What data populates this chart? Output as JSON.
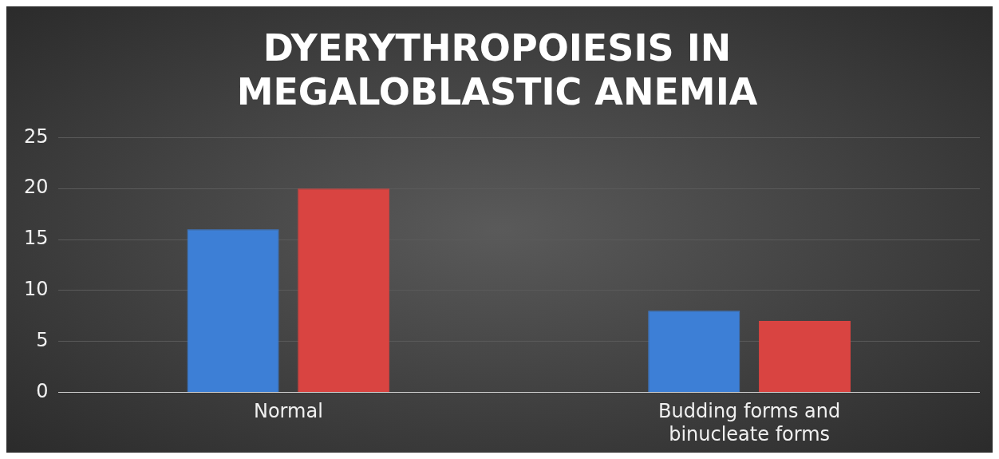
{
  "chart_data": {
    "type": "bar",
    "title": "DYERYTHROPOIESIS IN MEGALOBLASTIC ANEMIA",
    "categories": [
      "Normal",
      "Budding forms and binucleate forms"
    ],
    "series": [
      {
        "color": "#3d7fd6",
        "values": [
          16,
          8
        ]
      },
      {
        "color": "#d94441",
        "values": [
          20,
          7
        ]
      }
    ],
    "ylim": [
      0,
      25
    ],
    "yticks": [
      0,
      5,
      10,
      15,
      20,
      25
    ],
    "grid": "y",
    "legend": false
  }
}
